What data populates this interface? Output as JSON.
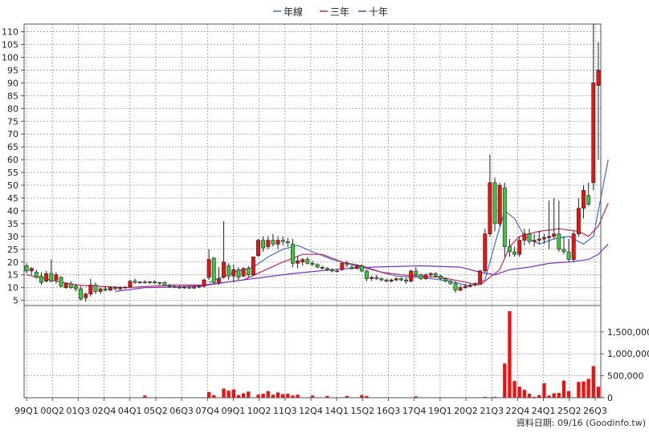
{
  "chart_data": {
    "type": "candlestick",
    "legend": {
      "placement": "top-center",
      "items": [
        {
          "name": "年線",
          "color": "#3b6fd6"
        },
        {
          "name": "三年",
          "color": "#cc2255"
        },
        {
          "name": "十年",
          "color": "#7a2ed0"
        }
      ]
    },
    "price_axis": {
      "ticks": [
        "5",
        "10",
        "15",
        "20",
        "25",
        "30",
        "35",
        "40",
        "45",
        "50",
        "55",
        "60",
        "65",
        "70",
        "75",
        "80",
        "85",
        "90",
        "95",
        "100",
        "105",
        "110"
      ],
      "range": [
        3,
        113
      ]
    },
    "volume_axis": {
      "ticks": [
        "0",
        "500,000",
        "1,000,000",
        "1,500,000"
      ],
      "range": [
        0,
        2100000
      ]
    },
    "x_axis": {
      "labels": [
        "99Q1",
        "00Q2",
        "01Q3",
        "02Q4",
        "04Q1",
        "05Q2",
        "06Q3",
        "07Q4",
        "09Q1",
        "10Q2",
        "11Q3",
        "12Q4",
        "14Q1",
        "15Q2",
        "16Q3",
        "17Q4",
        "19Q1",
        "20Q2",
        "21Q3",
        "22Q4",
        "24Q1",
        "25Q2",
        "26Q3"
      ]
    },
    "grid": true,
    "colors": {
      "up": "#ee1111",
      "down": "#3ec43e",
      "volume": "#ee1111",
      "grid": "#9a9a9a"
    },
    "candles": [
      [
        18.5,
        19.5,
        15.5,
        16.5
      ],
      [
        16.5,
        18,
        15,
        17.5
      ],
      [
        16,
        17,
        13.5,
        14
      ],
      [
        14.5,
        16,
        11,
        12
      ],
      [
        12.5,
        16.5,
        12,
        15.5
      ],
      [
        15.5,
        21,
        12,
        12.5
      ],
      [
        13,
        16,
        11.5,
        15
      ],
      [
        14,
        14.5,
        10,
        10.5
      ],
      [
        10,
        12,
        9.5,
        11.5
      ],
      [
        11.5,
        12.5,
        9.5,
        10
      ],
      [
        10.5,
        11.5,
        8.5,
        9.5
      ],
      [
        9.5,
        10.5,
        5,
        5.5
      ],
      [
        6,
        8,
        4.5,
        7.5
      ],
      [
        7.5,
        13.5,
        6.5,
        11
      ],
      [
        11,
        12,
        7.5,
        8.5
      ],
      [
        8.5,
        10,
        7.5,
        9.5
      ],
      [
        9.5,
        10.5,
        8.5,
        9
      ],
      [
        9,
        10.5,
        8.5,
        10
      ],
      [
        10,
        10.5,
        9,
        9.5
      ],
      [
        9.5,
        10.5,
        9,
        10
      ],
      [
        10,
        10.5,
        9.5,
        10.2
      ],
      [
        10.2,
        13,
        10,
        12.5
      ],
      [
        12.5,
        13.5,
        11.5,
        12
      ],
      [
        12,
        12.5,
        11.5,
        12.2
      ],
      [
        12.2,
        12.8,
        11.5,
        12
      ],
      [
        12,
        12.5,
        11.5,
        12.3
      ],
      [
        12.3,
        12.8,
        11.5,
        11.8
      ],
      [
        11.8,
        12.2,
        11,
        12
      ],
      [
        12,
        12.5,
        10.5,
        10.8
      ],
      [
        10.8,
        11.5,
        10,
        10.5
      ],
      [
        10.5,
        11,
        9.8,
        10.2
      ],
      [
        10.2,
        10.8,
        9.5,
        10
      ],
      [
        10,
        10.5,
        9.5,
        10.2
      ],
      [
        10.2,
        10.5,
        9.5,
        9.8
      ],
      [
        9.8,
        10.5,
        9.5,
        10.3
      ],
      [
        10.3,
        11,
        9.8,
        10.5
      ],
      [
        10.5,
        13.5,
        10,
        13
      ],
      [
        14,
        25,
        13,
        21
      ],
      [
        21.5,
        22,
        11.5,
        12
      ],
      [
        12,
        18,
        11,
        13.5
      ],
      [
        14,
        36,
        13.5,
        20
      ],
      [
        18.5,
        19.5,
        13,
        14.5
      ],
      [
        14.5,
        19,
        12,
        17
      ],
      [
        17,
        18,
        13,
        14
      ],
      [
        14.5,
        18,
        14,
        17.5
      ],
      [
        17.5,
        18.5,
        14,
        15
      ],
      [
        15,
        22,
        14.5,
        22
      ],
      [
        22.5,
        29,
        22,
        28.5
      ],
      [
        28.5,
        30,
        24,
        25.5
      ],
      [
        26,
        30,
        25,
        28.5
      ],
      [
        28.5,
        31,
        26,
        27
      ],
      [
        27,
        30,
        25,
        28.5
      ],
      [
        28.5,
        30,
        26.5,
        28
      ],
      [
        28,
        29.5,
        26,
        27.5
      ],
      [
        27,
        29,
        18,
        19.5
      ],
      [
        19.5,
        22.5,
        17.5,
        20.5
      ],
      [
        20,
        21.5,
        18.5,
        21
      ],
      [
        21,
        22,
        19,
        19.5
      ],
      [
        19.5,
        20.5,
        18.5,
        19
      ],
      [
        19,
        19.5,
        17.5,
        18
      ],
      [
        18,
        18.5,
        17,
        17.5
      ],
      [
        17.5,
        18,
        16.5,
        17
      ],
      [
        17,
        17.5,
        16,
        16.5
      ],
      [
        16.5,
        17,
        16,
        16.5
      ],
      [
        17,
        20,
        16.5,
        19.5
      ],
      [
        19.5,
        20.5,
        18,
        19
      ],
      [
        18,
        19,
        17,
        17.5
      ],
      [
        17.5,
        19,
        17,
        18.5
      ],
      [
        18.5,
        19,
        16,
        16.5
      ],
      [
        16.5,
        17,
        12.5,
        13.5
      ],
      [
        13.5,
        14.5,
        12.5,
        14
      ],
      [
        14,
        15,
        13,
        13.5
      ],
      [
        13.5,
        14,
        12.5,
        13
      ],
      [
        13,
        13.5,
        12,
        12.5
      ],
      [
        12.5,
        13.5,
        12,
        13
      ],
      [
        13,
        14,
        12.5,
        13.5
      ],
      [
        13.5,
        14,
        12.5,
        13
      ],
      [
        13,
        14,
        11.5,
        12.5
      ],
      [
        12.5,
        17,
        12,
        16.5
      ],
      [
        16.5,
        18,
        14,
        15
      ],
      [
        15,
        15.5,
        13,
        13.5
      ],
      [
        13.5,
        15.5,
        13,
        15
      ],
      [
        15,
        16,
        14,
        15.5
      ],
      [
        15.5,
        16,
        14,
        14.5
      ],
      [
        14.5,
        15,
        13,
        13.5
      ],
      [
        13.5,
        14,
        12,
        12.5
      ],
      [
        12.5,
        13,
        11,
        11.5
      ],
      [
        11.5,
        12.5,
        8,
        9
      ],
      [
        9,
        11,
        8.5,
        10
      ],
      [
        10,
        11.5,
        9.5,
        10.5
      ],
      [
        10.5,
        11.5,
        10,
        11
      ],
      [
        11,
        12,
        10.5,
        11.5
      ],
      [
        11.5,
        17,
        11.5,
        16.5
      ],
      [
        16.5,
        33,
        16,
        31
      ],
      [
        31,
        62,
        30,
        51
      ],
      [
        51,
        53,
        32,
        35
      ],
      [
        35,
        51,
        34,
        50
      ],
      [
        49,
        51,
        22,
        26
      ],
      [
        26,
        29,
        22,
        24
      ],
      [
        24,
        26,
        22,
        23
      ],
      [
        23,
        30,
        22,
        28.5
      ],
      [
        28.5,
        33,
        26.5,
        31
      ],
      [
        31,
        33,
        27,
        28
      ],
      [
        28,
        31,
        26,
        28.5
      ],
      [
        28.5,
        32,
        27,
        29
      ],
      [
        29,
        31,
        27,
        29.5
      ],
      [
        29.5,
        44,
        25,
        30
      ],
      [
        30,
        45,
        29,
        31
      ],
      [
        31,
        44,
        24,
        25
      ],
      [
        25,
        30,
        23,
        24
      ],
      [
        24,
        29,
        20,
        21
      ],
      [
        21,
        32,
        20,
        31
      ],
      [
        31,
        45,
        30,
        41
      ],
      [
        41,
        50,
        37,
        48
      ],
      [
        46,
        51,
        42,
        42.5
      ],
      [
        51,
        113,
        48,
        90
      ],
      [
        89,
        106,
        60,
        95
      ]
    ],
    "lines": {
      "年線": [
        [
          37,
          12
        ],
        [
          42,
          16
        ],
        [
          46,
          18
        ],
        [
          49,
          22
        ],
        [
          52,
          25
        ],
        [
          55,
          26.5
        ],
        [
          58,
          24
        ],
        [
          62,
          21
        ],
        [
          66,
          19
        ],
        [
          70,
          17
        ],
        [
          75,
          14.5
        ],
        [
          80,
          14
        ],
        [
          86,
          12.5
        ],
        [
          90,
          10.5
        ],
        [
          93,
          13
        ],
        [
          95,
          27
        ],
        [
          97,
          40
        ],
        [
          99,
          37
        ],
        [
          101,
          30
        ],
        [
          104,
          27
        ],
        [
          107,
          29
        ],
        [
          110,
          30
        ],
        [
          113,
          27
        ],
        [
          115,
          30
        ],
        [
          118,
          60
        ]
      ],
      "三年": [
        [
          0,
          15
        ],
        [
          10,
          11
        ],
        [
          20,
          10
        ],
        [
          30,
          11
        ],
        [
          36,
          11
        ],
        [
          40,
          12
        ],
        [
          44,
          13
        ],
        [
          48,
          16.5
        ],
        [
          52,
          20
        ],
        [
          56,
          23
        ],
        [
          60,
          23
        ],
        [
          64,
          20
        ],
        [
          68,
          18.5
        ],
        [
          72,
          16
        ],
        [
          76,
          15
        ],
        [
          80,
          14.5
        ],
        [
          84,
          14
        ],
        [
          88,
          12.5
        ],
        [
          92,
          11
        ],
        [
          96,
          17
        ],
        [
          98,
          26
        ],
        [
          100,
          30
        ],
        [
          104,
          32
        ],
        [
          108,
          33
        ],
        [
          112,
          32
        ],
        [
          114,
          30
        ],
        [
          116,
          34
        ],
        [
          118,
          43
        ]
      ],
      "十年": [
        [
          18,
          8.5
        ],
        [
          24,
          10
        ],
        [
          30,
          10.2
        ],
        [
          36,
          10.8
        ],
        [
          42,
          12.5
        ],
        [
          48,
          14
        ],
        [
          54,
          15.5
        ],
        [
          62,
          17
        ],
        [
          70,
          18
        ],
        [
          80,
          18.5
        ],
        [
          88,
          18
        ],
        [
          92,
          16
        ],
        [
          95,
          15
        ],
        [
          98,
          17
        ],
        [
          102,
          18
        ],
        [
          106,
          19.5
        ],
        [
          110,
          20
        ],
        [
          114,
          21
        ],
        [
          116,
          23
        ],
        [
          118,
          27
        ]
      ]
    },
    "volume": [
      [
        24,
        50000
      ],
      [
        37,
        130000
      ],
      [
        38,
        60000
      ],
      [
        40,
        210000
      ],
      [
        41,
        160000
      ],
      [
        42,
        190000
      ],
      [
        43,
        60000
      ],
      [
        44,
        100000
      ],
      [
        45,
        140000
      ],
      [
        47,
        70000
      ],
      [
        48,
        90000
      ],
      [
        49,
        150000
      ],
      [
        50,
        70000
      ],
      [
        51,
        120000
      ],
      [
        52,
        80000
      ],
      [
        53,
        90000
      ],
      [
        54,
        50000
      ],
      [
        55,
        70000
      ],
      [
        58,
        50000
      ],
      [
        61,
        40000
      ],
      [
        65,
        40000
      ],
      [
        68,
        60000
      ],
      [
        69,
        40000
      ],
      [
        79,
        30000
      ],
      [
        93,
        20000
      ],
      [
        95,
        20000
      ],
      [
        97,
        780000
      ],
      [
        98,
        1970000
      ],
      [
        99,
        380000
      ],
      [
        100,
        250000
      ],
      [
        101,
        180000
      ],
      [
        102,
        90000
      ],
      [
        103,
        20000
      ],
      [
        104,
        60000
      ],
      [
        105,
        330000
      ],
      [
        106,
        50000
      ],
      [
        107,
        100000
      ],
      [
        108,
        110000
      ],
      [
        109,
        390000
      ],
      [
        110,
        150000
      ],
      [
        112,
        360000
      ],
      [
        113,
        370000
      ],
      [
        114,
        430000
      ],
      [
        115,
        720000
      ],
      [
        116,
        250000
      ],
      [
        117,
        10000
      ]
    ]
  },
  "footer": {
    "source": "資料日期: 09/16 (Goodinfo.tw)"
  }
}
